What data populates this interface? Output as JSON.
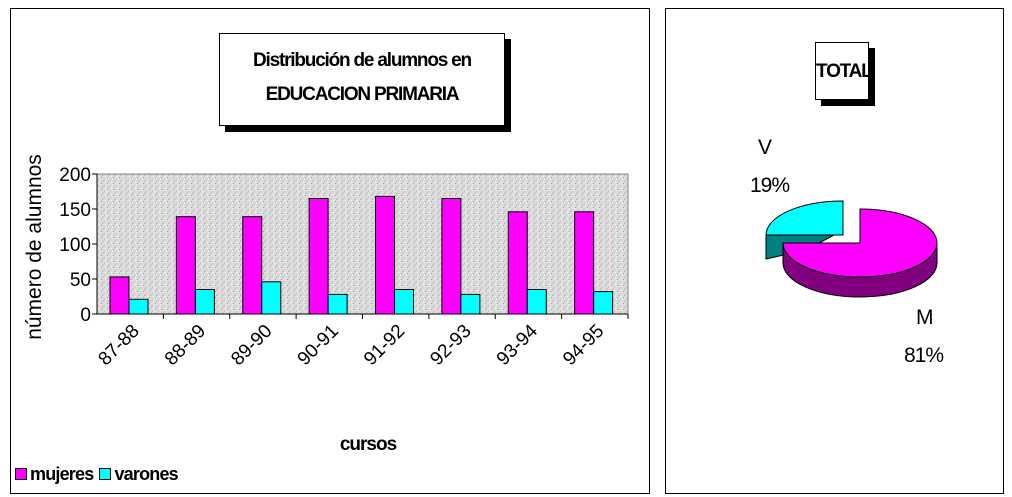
{
  "bar_chart": {
    "title_line1": "Distribución de alumnos en",
    "title_line2": "EDUCACION PRIMARIA",
    "xlabel": "cursos",
    "ylabel": "número de alumnos",
    "legend": {
      "mujeres": "mujeres",
      "varones": "varones"
    },
    "colors": {
      "mujeres": "#ff00ff",
      "varones": "#00ffff",
      "plot_bg": "#d8d8d8"
    }
  },
  "pie_chart": {
    "title": "TOTAL",
    "labels": [
      {
        "name": "V",
        "pct": "19%"
      },
      {
        "name": "M",
        "pct": "81%"
      }
    ],
    "colors": {
      "M_top": "#ff00ff",
      "M_side": "#800080",
      "V_top": "#00ffff",
      "V_side": "#008080"
    }
  },
  "chart_data": [
    {
      "type": "bar",
      "title": "Distribución de alumnos en EDUCACION PRIMARIA",
      "xlabel": "cursos",
      "ylabel": "número de alumnos",
      "categories": [
        "87-88",
        "88-89",
        "89-90",
        "90-91",
        "91-92",
        "92-93",
        "93-94",
        "94-95"
      ],
      "series": [
        {
          "name": "mujeres",
          "values": [
            53,
            139,
            139,
            165,
            168,
            165,
            146,
            146
          ]
        },
        {
          "name": "varones",
          "values": [
            21,
            35,
            46,
            28,
            35,
            28,
            35,
            32
          ]
        }
      ],
      "ylim": [
        0,
        200
      ],
      "yticks": [
        0,
        50,
        100,
        150,
        200
      ],
      "grid": false,
      "legend_position": "bottom-left"
    },
    {
      "type": "pie",
      "title": "TOTAL",
      "categories": [
        "M",
        "V"
      ],
      "values": [
        81,
        19
      ],
      "data_labels": [
        "81%",
        "19%"
      ]
    }
  ]
}
